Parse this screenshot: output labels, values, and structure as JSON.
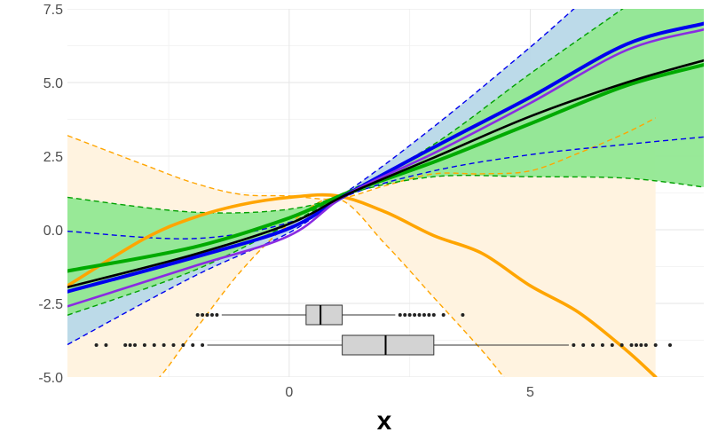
{
  "chart_data": {
    "type": "line",
    "xlabel": "x",
    "ylabel": "",
    "xlim": [
      -4.6,
      8.6
    ],
    "ylim": [
      -5.0,
      7.5
    ],
    "x_ticks": [
      0,
      5
    ],
    "y_ticks": [
      7.5,
      5.0,
      2.5,
      0.0,
      -2.5,
      -5.0
    ],
    "y_tick_labels": [
      "7.5",
      "5.0",
      "2.5",
      "0.0",
      "-2.5",
      "-5.0"
    ],
    "grid": true,
    "legend": "none",
    "colors": {
      "orange": "#FFA500",
      "orange_band": "#FFF3E0",
      "green": "#00AA00",
      "green_band": "#92E892",
      "blue": "#0000EE",
      "blue_band": "#B8D8E8",
      "purple": "#8A2BE2",
      "black": "#000000",
      "box_fill": "#D3D3D3"
    },
    "series": [
      {
        "color": "orange",
        "x": [
          -4.6,
          -3.0,
          -2.0,
          -1.0,
          0.0,
          1.0,
          2.0,
          3.0,
          4.0,
          5.0,
          6.0,
          7.0,
          7.6
        ],
        "y": [
          -1.9,
          -0.3,
          0.4,
          0.85,
          1.1,
          1.15,
          0.6,
          -0.2,
          -0.8,
          -1.9,
          -2.8,
          -4.1,
          -5.0
        ],
        "band_lower": [
          -7.0,
          -5.5,
          -3.5,
          -1.4,
          0.2,
          1.05,
          -0.5,
          -2.3,
          -4.1,
          -6.0,
          -7.0,
          -7.0,
          -7.0
        ],
        "band_upper": [
          3.2,
          2.2,
          1.6,
          1.2,
          1.15,
          1.05,
          1.5,
          1.9,
          1.9,
          2.0,
          2.6,
          3.3,
          3.8
        ]
      },
      {
        "color": "green",
        "x": [
          -4.6,
          -2.0,
          0.0,
          1.2,
          3.0,
          5.0,
          7.0,
          8.6
        ],
        "y": [
          -1.4,
          -0.6,
          0.4,
          1.25,
          2.3,
          3.6,
          4.9,
          5.6
        ],
        "band_lower": [
          -2.9,
          -1.4,
          0.2,
          1.2,
          1.8,
          1.8,
          1.75,
          1.45
        ],
        "band_upper": [
          1.1,
          0.6,
          0.7,
          1.3,
          2.9,
          5.3,
          7.6,
          9.5
        ]
      },
      {
        "color": "blue",
        "x": [
          -4.6,
          -2.0,
          0.0,
          1.2,
          3.0,
          5.0,
          7.0,
          8.6
        ],
        "y": [
          -2.1,
          -0.95,
          0.05,
          1.2,
          2.8,
          4.5,
          6.3,
          7.0
        ],
        "band_lower": [
          -3.9,
          -1.6,
          -0.1,
          1.15,
          2.0,
          2.55,
          2.9,
          3.15
        ],
        "band_upper": [
          -0.05,
          -0.3,
          0.25,
          1.3,
          3.5,
          6.2,
          9.0,
          10.5
        ]
      },
      {
        "color": "purple",
        "x": [
          -4.6,
          -2.0,
          0.0,
          1.2,
          3.0,
          5.0,
          7.0,
          8.6
        ],
        "y": [
          -2.6,
          -1.25,
          -0.2,
          1.2,
          2.6,
          4.3,
          6.1,
          6.8
        ]
      },
      {
        "color": "black",
        "x": [
          -4.6,
          -2.0,
          0.0,
          1.2,
          3.0,
          5.0,
          7.0,
          8.6
        ],
        "y": [
          -1.95,
          -0.85,
          0.2,
          1.2,
          2.45,
          3.85,
          5.0,
          5.75
        ]
      }
    ],
    "boxplots": [
      {
        "row": "upper",
        "q1": 0.35,
        "median": 0.65,
        "q3": 1.1,
        "whisker_low": -1.4,
        "whisker_high": 2.2,
        "outliers": [
          -1.9,
          -1.8,
          -1.7,
          -1.6,
          -1.5,
          2.3,
          2.4,
          2.5,
          2.6,
          2.7,
          2.8,
          2.9,
          3.0,
          3.2,
          3.6
        ]
      },
      {
        "row": "lower",
        "q1": 1.1,
        "median": 2.0,
        "q3": 3.0,
        "whisker_low": -1.7,
        "whisker_high": 5.8,
        "outliers": [
          -4.0,
          -3.8,
          -3.4,
          -3.3,
          -3.2,
          -3.0,
          -2.8,
          -2.6,
          -2.4,
          -2.2,
          -2.0,
          -1.8,
          5.9,
          6.1,
          6.3,
          6.5,
          6.7,
          6.9,
          7.1,
          7.2,
          7.3,
          7.4,
          7.6,
          7.9
        ]
      }
    ]
  }
}
